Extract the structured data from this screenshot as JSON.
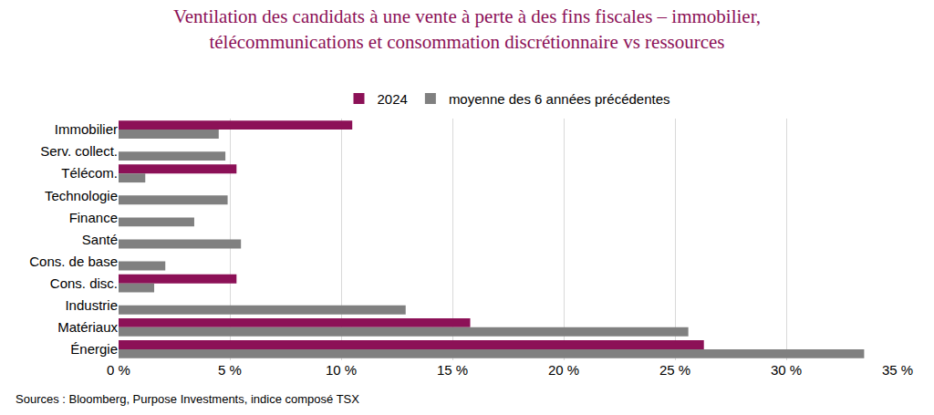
{
  "chart_data": {
    "type": "bar",
    "orientation": "horizontal",
    "title": "Ventilation des candidats à une vente à perte à des fins fiscales – immobilier,\ntélécommunications et consommation discrétionnaire vs ressources",
    "categories": [
      "Immobilier",
      "Serv. collect.",
      "Télécom.",
      "Technologie",
      "Finance",
      "Santé",
      "Cons. de base",
      "Cons. disc.",
      "Industrie",
      "Matériaux",
      "Énergie"
    ],
    "series": [
      {
        "name": "2024",
        "color": "#8c1157",
        "values": [
          10.5,
          0,
          5.3,
          0,
          0,
          0,
          0,
          5.3,
          0,
          15.8,
          26.3
        ]
      },
      {
        "name": "moyenne des 6 années précédentes",
        "color": "#808080",
        "values": [
          4.5,
          4.8,
          1.2,
          4.9,
          3.4,
          5.5,
          2.1,
          1.6,
          12.9,
          25.6,
          33.5
        ]
      }
    ],
    "xlim": [
      0,
      35
    ],
    "xticks": [
      {
        "value": 0,
        "label": "0 %"
      },
      {
        "value": 5,
        "label": "5 %"
      },
      {
        "value": 10,
        "label": "10 %"
      },
      {
        "value": 15,
        "label": "15 %"
      },
      {
        "value": 20,
        "label": "20 %"
      },
      {
        "value": 25,
        "label": "25 %"
      },
      {
        "value": 30,
        "label": "30 %"
      },
      {
        "value": 35,
        "label": "35 %"
      }
    ],
    "grid": true,
    "legend": "top",
    "source": "Sources : Bloomberg, Purpose Investments, indice composé TSX"
  }
}
